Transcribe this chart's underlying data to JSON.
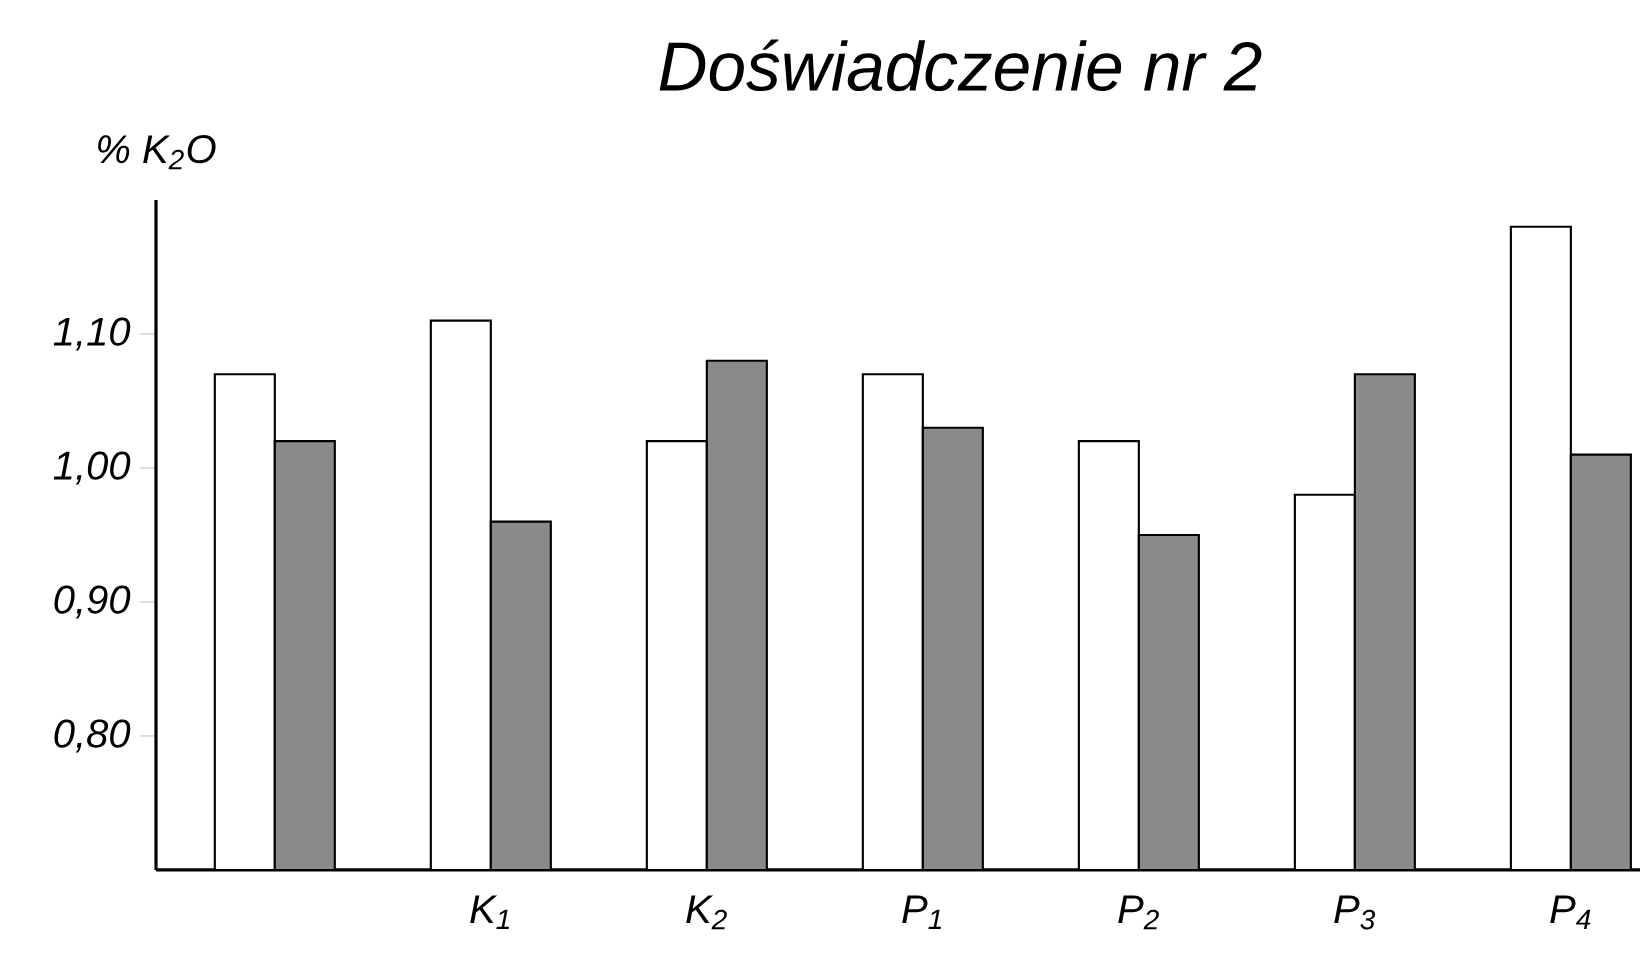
{
  "chart_data": {
    "type": "bar",
    "title": "Doświadczenie nr 2",
    "ylabel": "% K$_{2}$O",
    "categories": [
      null,
      "K$_{1}$",
      "K$_{2}$",
      "P$_{1}$",
      "P$_{2}$",
      "P$_{3}$",
      "P$_{4}$"
    ],
    "series": [
      {
        "color": "#ffffff",
        "values": [
          1.07,
          1.11,
          1.02,
          1.07,
          1.02,
          0.98,
          1.18
        ]
      },
      {
        "color": "#8a8a8a",
        "values": [
          1.02,
          0.96,
          1.08,
          1.03,
          0.95,
          1.07,
          1.01
        ]
      }
    ],
    "ylim": [
      0.7,
      1.2
    ],
    "yticks": [
      {
        "value": 0.8,
        "label": "0,80"
      },
      {
        "value": 0.9,
        "label": "0,90"
      },
      {
        "value": 1.0,
        "label": "1,00"
      },
      {
        "value": 1.1,
        "label": "1,10"
      }
    ]
  }
}
